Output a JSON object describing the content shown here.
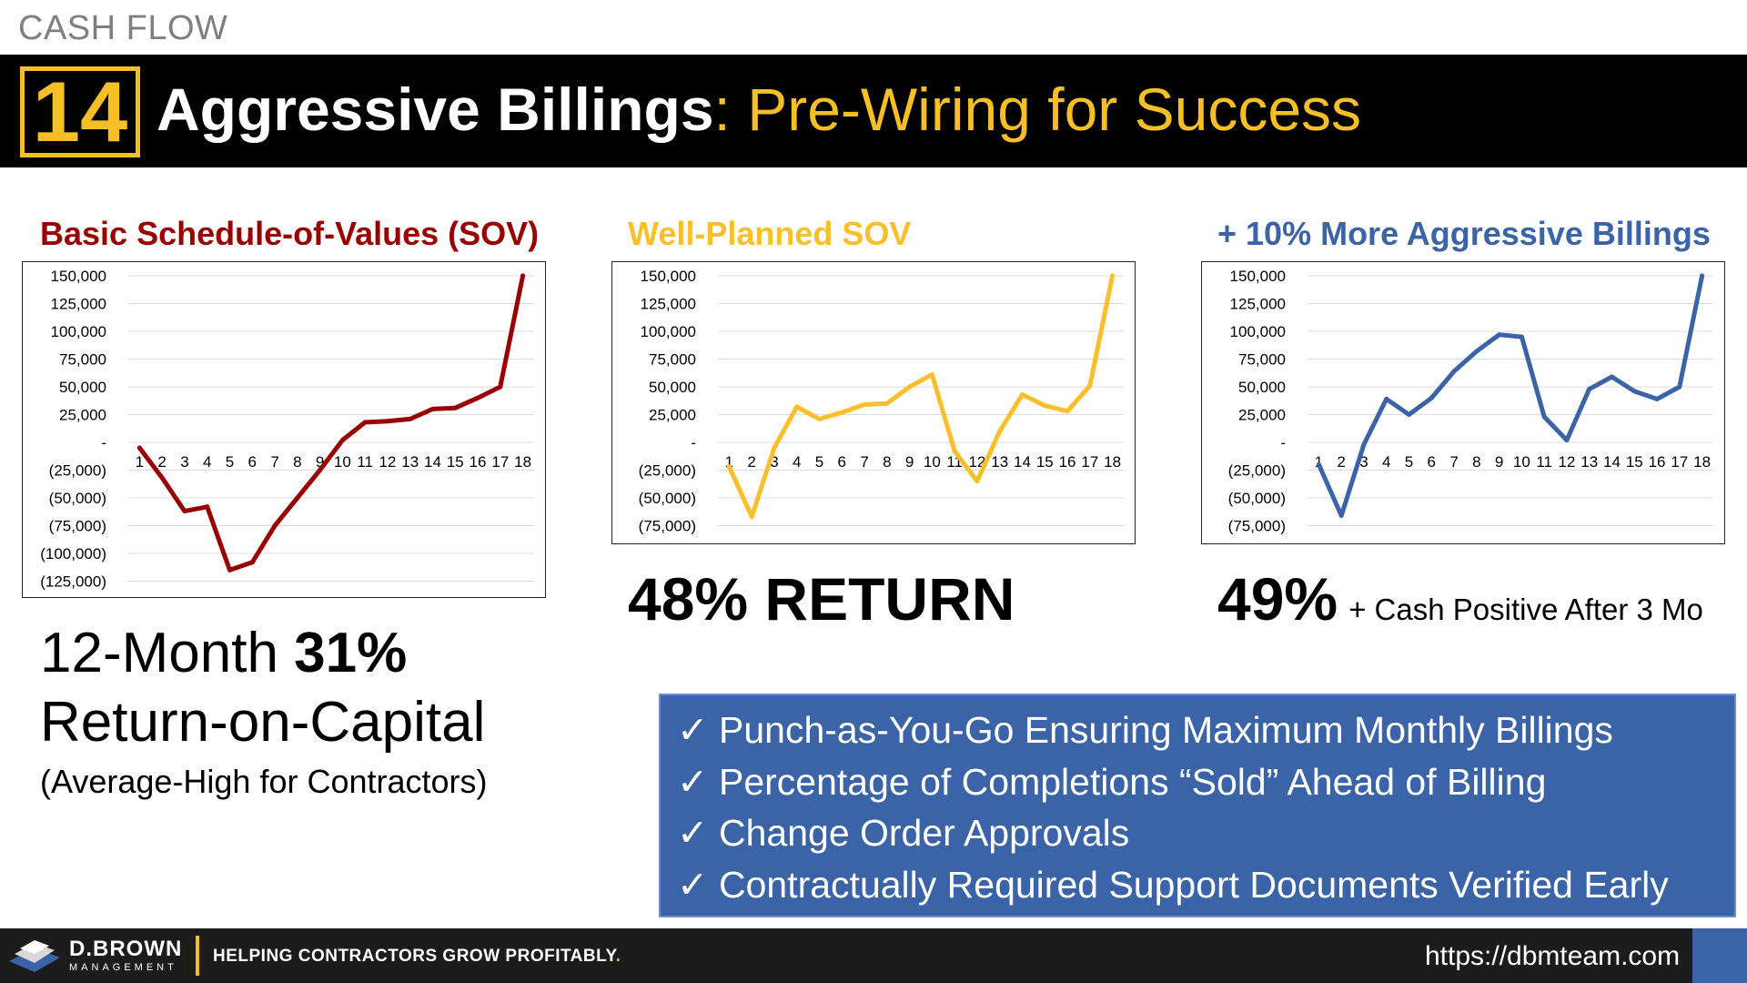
{
  "header": {
    "topic": "CASH FLOW",
    "number": "14",
    "title_bold": "Aggressive Billings",
    "title_rest": ": Pre-Wiring for Success"
  },
  "chart_data": [
    {
      "type": "line",
      "title": "Basic Schedule-of-Values (SOV)",
      "color": "#990000",
      "categories": [
        "1",
        "2",
        "3",
        "4",
        "5",
        "6",
        "7",
        "8",
        "9",
        "10",
        "11",
        "12",
        "13",
        "14",
        "15",
        "16",
        "17",
        "18"
      ],
      "values": [
        -5000,
        -32000,
        -62000,
        -58000,
        -115000,
        -108000,
        -75000,
        -50000,
        -25000,
        2000,
        18000,
        19000,
        21000,
        30000,
        31000,
        40000,
        50000,
        150000
      ],
      "ylim": [
        -125000,
        150000
      ],
      "yticks": [
        150000,
        125000,
        100000,
        75000,
        50000,
        25000,
        0,
        -25000,
        -50000,
        -75000,
        -100000,
        -125000
      ],
      "ytick_labels": [
        "150,000",
        "125,000",
        "100,000",
        "75,000",
        "50,000",
        "25,000",
        "-",
        "(25,000)",
        "(50,000)",
        "(75,000)",
        "(100,000)",
        "(125,000)"
      ],
      "grid": true
    },
    {
      "type": "line",
      "title": "Well-Planned SOV",
      "color": "#fbbf2c",
      "categories": [
        "1",
        "2",
        "3",
        "4",
        "5",
        "6",
        "7",
        "8",
        "9",
        "10",
        "11",
        "12",
        "13",
        "14",
        "15",
        "16",
        "17",
        "18"
      ],
      "values": [
        -22000,
        -67000,
        -5000,
        32000,
        21000,
        27000,
        34000,
        35000,
        50000,
        61000,
        -8000,
        -35000,
        10000,
        43000,
        33000,
        28000,
        51000,
        150000
      ],
      "ylim": [
        -75000,
        150000
      ],
      "yticks": [
        150000,
        125000,
        100000,
        75000,
        50000,
        25000,
        0,
        -25000,
        -50000,
        -75000
      ],
      "ytick_labels": [
        "150,000",
        "125,000",
        "100,000",
        "75,000",
        "50,000",
        "25,000",
        "-",
        "(25,000)",
        "(50,000)",
        "(75,000)"
      ],
      "grid": true
    },
    {
      "type": "line",
      "title": "+ 10% More Aggressive Billings",
      "color": "#3a63a8",
      "categories": [
        "1",
        "2",
        "3",
        "4",
        "5",
        "6",
        "7",
        "8",
        "9",
        "10",
        "11",
        "12",
        "13",
        "14",
        "15",
        "16",
        "17",
        "18"
      ],
      "values": [
        -20000,
        -66000,
        -2000,
        39000,
        25000,
        40000,
        64000,
        82000,
        97000,
        95000,
        23000,
        2000,
        48000,
        59000,
        46000,
        39000,
        50000,
        150000
      ],
      "ylim": [
        -75000,
        150000
      ],
      "yticks": [
        150000,
        125000,
        100000,
        75000,
        50000,
        25000,
        0,
        -25000,
        -50000,
        -75000
      ],
      "ytick_labels": [
        "150,000",
        "125,000",
        "100,000",
        "75,000",
        "50,000",
        "25,000",
        "-",
        "(25,000)",
        "(50,000)",
        "(75,000)"
      ],
      "grid": true
    }
  ],
  "returns": {
    "r1_prefix": "12-Month ",
    "r1_bold": "31%",
    "r1_line2": "Return-on-Capital",
    "r1_note": "(Average-High for Contractors)",
    "r2": "48% RETURN",
    "r3_big": "49%",
    "r3_small": "+ Cash Positive After 3 Mo"
  },
  "checklist": {
    "check_symbol": "✓",
    "items": [
      "Punch-as-You-Go Ensuring Maximum Monthly Billings",
      "Percentage of Completions “Sold” Ahead of Billing",
      "Change Order Approvals",
      "Contractually Required Support Documents Verified Early"
    ]
  },
  "footer": {
    "logo_name": "D.BROWN",
    "logo_sub": "MANAGEMENT",
    "tagline": "HELPING CONTRACTORS GROW PROFITABLY",
    "tagline_dot": ".",
    "url": "https://dbmteam.com"
  }
}
